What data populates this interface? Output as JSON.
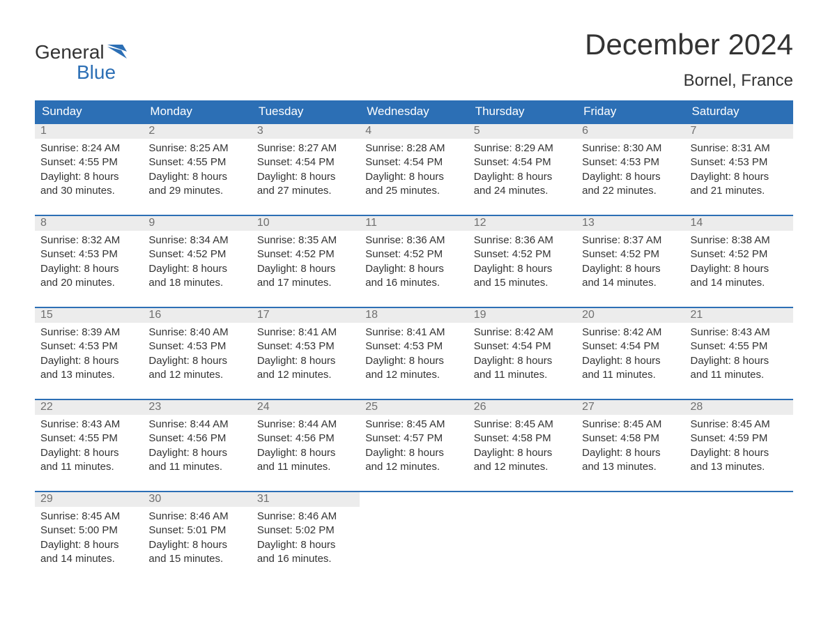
{
  "logo": {
    "text_top": "General",
    "text_bottom": "Blue",
    "accent_color": "#2c6fb5"
  },
  "title": "December 2024",
  "location": "Bornel, France",
  "colors": {
    "header_bg": "#2c6fb5",
    "header_text": "#ffffff",
    "daynum_bg": "#ececec",
    "daynum_text": "#6f6f6f",
    "body_text": "#333333",
    "week_border": "#2c6fb5",
    "page_bg": "#ffffff"
  },
  "day_labels": [
    "Sunday",
    "Monday",
    "Tuesday",
    "Wednesday",
    "Thursday",
    "Friday",
    "Saturday"
  ],
  "field_labels": {
    "sunrise": "Sunrise",
    "sunset": "Sunset",
    "daylight": "Daylight"
  },
  "weeks": [
    [
      {
        "n": "1",
        "sunrise": "8:24 AM",
        "sunset": "4:55 PM",
        "daylight": "8 hours and 30 minutes."
      },
      {
        "n": "2",
        "sunrise": "8:25 AM",
        "sunset": "4:55 PM",
        "daylight": "8 hours and 29 minutes."
      },
      {
        "n": "3",
        "sunrise": "8:27 AM",
        "sunset": "4:54 PM",
        "daylight": "8 hours and 27 minutes."
      },
      {
        "n": "4",
        "sunrise": "8:28 AM",
        "sunset": "4:54 PM",
        "daylight": "8 hours and 25 minutes."
      },
      {
        "n": "5",
        "sunrise": "8:29 AM",
        "sunset": "4:54 PM",
        "daylight": "8 hours and 24 minutes."
      },
      {
        "n": "6",
        "sunrise": "8:30 AM",
        "sunset": "4:53 PM",
        "daylight": "8 hours and 22 minutes."
      },
      {
        "n": "7",
        "sunrise": "8:31 AM",
        "sunset": "4:53 PM",
        "daylight": "8 hours and 21 minutes."
      }
    ],
    [
      {
        "n": "8",
        "sunrise": "8:32 AM",
        "sunset": "4:53 PM",
        "daylight": "8 hours and 20 minutes."
      },
      {
        "n": "9",
        "sunrise": "8:34 AM",
        "sunset": "4:52 PM",
        "daylight": "8 hours and 18 minutes."
      },
      {
        "n": "10",
        "sunrise": "8:35 AM",
        "sunset": "4:52 PM",
        "daylight": "8 hours and 17 minutes."
      },
      {
        "n": "11",
        "sunrise": "8:36 AM",
        "sunset": "4:52 PM",
        "daylight": "8 hours and 16 minutes."
      },
      {
        "n": "12",
        "sunrise": "8:36 AM",
        "sunset": "4:52 PM",
        "daylight": "8 hours and 15 minutes."
      },
      {
        "n": "13",
        "sunrise": "8:37 AM",
        "sunset": "4:52 PM",
        "daylight": "8 hours and 14 minutes."
      },
      {
        "n": "14",
        "sunrise": "8:38 AM",
        "sunset": "4:52 PM",
        "daylight": "8 hours and 14 minutes."
      }
    ],
    [
      {
        "n": "15",
        "sunrise": "8:39 AM",
        "sunset": "4:53 PM",
        "daylight": "8 hours and 13 minutes."
      },
      {
        "n": "16",
        "sunrise": "8:40 AM",
        "sunset": "4:53 PM",
        "daylight": "8 hours and 12 minutes."
      },
      {
        "n": "17",
        "sunrise": "8:41 AM",
        "sunset": "4:53 PM",
        "daylight": "8 hours and 12 minutes."
      },
      {
        "n": "18",
        "sunrise": "8:41 AM",
        "sunset": "4:53 PM",
        "daylight": "8 hours and 12 minutes."
      },
      {
        "n": "19",
        "sunrise": "8:42 AM",
        "sunset": "4:54 PM",
        "daylight": "8 hours and 11 minutes."
      },
      {
        "n": "20",
        "sunrise": "8:42 AM",
        "sunset": "4:54 PM",
        "daylight": "8 hours and 11 minutes."
      },
      {
        "n": "21",
        "sunrise": "8:43 AM",
        "sunset": "4:55 PM",
        "daylight": "8 hours and 11 minutes."
      }
    ],
    [
      {
        "n": "22",
        "sunrise": "8:43 AM",
        "sunset": "4:55 PM",
        "daylight": "8 hours and 11 minutes."
      },
      {
        "n": "23",
        "sunrise": "8:44 AM",
        "sunset": "4:56 PM",
        "daylight": "8 hours and 11 minutes."
      },
      {
        "n": "24",
        "sunrise": "8:44 AM",
        "sunset": "4:56 PM",
        "daylight": "8 hours and 11 minutes."
      },
      {
        "n": "25",
        "sunrise": "8:45 AM",
        "sunset": "4:57 PM",
        "daylight": "8 hours and 12 minutes."
      },
      {
        "n": "26",
        "sunrise": "8:45 AM",
        "sunset": "4:58 PM",
        "daylight": "8 hours and 12 minutes."
      },
      {
        "n": "27",
        "sunrise": "8:45 AM",
        "sunset": "4:58 PM",
        "daylight": "8 hours and 13 minutes."
      },
      {
        "n": "28",
        "sunrise": "8:45 AM",
        "sunset": "4:59 PM",
        "daylight": "8 hours and 13 minutes."
      }
    ],
    [
      {
        "n": "29",
        "sunrise": "8:45 AM",
        "sunset": "5:00 PM",
        "daylight": "8 hours and 14 minutes."
      },
      {
        "n": "30",
        "sunrise": "8:46 AM",
        "sunset": "5:01 PM",
        "daylight": "8 hours and 15 minutes."
      },
      {
        "n": "31",
        "sunrise": "8:46 AM",
        "sunset": "5:02 PM",
        "daylight": "8 hours and 16 minutes."
      },
      null,
      null,
      null,
      null
    ]
  ]
}
